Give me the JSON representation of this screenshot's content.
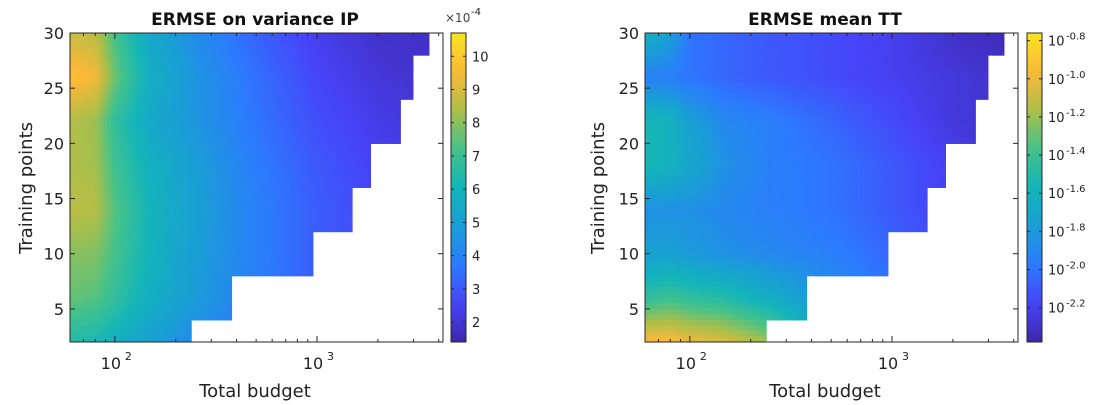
{
  "colormap": [
    "#3e26a8",
    "#4743f8",
    "#2c7bfe",
    "#199ed5",
    "#14b5b9",
    "#44c28a",
    "#acbf4a",
    "#fcb838",
    "#f8e520"
  ],
  "chart_data": [
    {
      "type": "heatmap",
      "title": "ERMSE on variance IP",
      "xlabel": "Total budget",
      "ylabel": "Training points",
      "xscale": "log",
      "xlim": [
        60,
        4200
      ],
      "ylim": [
        2,
        30
      ],
      "xticks": [
        {
          "label": "10",
          "exp": "2",
          "value": 100
        },
        {
          "label": "10",
          "exp": "3",
          "value": 1000
        }
      ],
      "yticks": [
        5,
        10,
        15,
        20,
        25,
        30
      ],
      "colorbar": {
        "min": 1.4,
        "max": 10.7,
        "multiplier_base": "×10",
        "multiplier_exp": "-4",
        "ticks": [
          {
            "label": "2",
            "value": 2
          },
          {
            "label": "3",
            "value": 3
          },
          {
            "label": "4",
            "value": 4
          },
          {
            "label": "5",
            "value": 5
          },
          {
            "label": "6",
            "value": 6
          },
          {
            "label": "7",
            "value": 7
          },
          {
            "label": "8",
            "value": 8
          },
          {
            "label": "9",
            "value": 9
          },
          {
            "label": "10",
            "value": 10
          }
        ]
      },
      "boundary": [
        {
          "y_from": 2,
          "y_to": 4,
          "x_max": 240
        },
        {
          "y_from": 4,
          "y_to": 8,
          "x_max": 380
        },
        {
          "y_from": 8,
          "y_to": 12,
          "x_max": 960
        },
        {
          "y_from": 12,
          "y_to": 16,
          "x_max": 1500
        },
        {
          "y_from": 16,
          "y_to": 20,
          "x_max": 1850
        },
        {
          "y_from": 20,
          "y_to": 24,
          "x_max": 2600
        },
        {
          "y_from": 24,
          "y_to": 28,
          "x_max": 3000
        },
        {
          "y_from": 28,
          "y_to": 30,
          "x_max": 3600
        }
      ],
      "x_nodes": [
        60,
        80,
        100,
        150,
        250,
        500,
        1000,
        2000,
        4200
      ],
      "y_nodes": [
        2,
        6,
        10,
        14,
        18,
        22,
        26,
        30
      ],
      "values": [
        [
          6.5,
          6.2,
          5.8,
          5.0,
          4.2,
          3.6,
          3.0,
          2.6,
          2.2
        ],
        [
          7.6,
          7.4,
          6.8,
          5.7,
          4.8,
          3.8,
          3.1,
          2.6,
          2.2
        ],
        [
          8.0,
          7.9,
          7.2,
          5.9,
          4.9,
          3.9,
          3.1,
          2.6,
          2.2
        ],
        [
          8.6,
          8.5,
          7.4,
          6.0,
          5.0,
          3.9,
          3.1,
          2.6,
          2.2
        ],
        [
          8.4,
          8.3,
          7.1,
          5.8,
          4.9,
          3.8,
          3.0,
          2.5,
          2.1
        ],
        [
          8.5,
          8.2,
          6.8,
          5.4,
          4.6,
          3.6,
          2.8,
          2.3,
          2.0
        ],
        [
          9.8,
          9.4,
          7.7,
          5.7,
          4.6,
          3.5,
          2.6,
          2.1,
          1.9
        ],
        [
          8.8,
          8.6,
          7.2,
          5.3,
          4.3,
          3.2,
          2.4,
          1.9,
          1.8
        ]
      ]
    },
    {
      "type": "heatmap",
      "title": "ERMSE mean TT",
      "xlabel": "Total budget",
      "ylabel": "Training points",
      "xscale": "log",
      "xlim": [
        60,
        4200
      ],
      "ylim": [
        2,
        30
      ],
      "xticks": [
        {
          "label": "10",
          "exp": "2",
          "value": 100
        },
        {
          "label": "10",
          "exp": "3",
          "value": 1000
        }
      ],
      "yticks": [
        5,
        10,
        15,
        20,
        25,
        30
      ],
      "colorbar": {
        "min": -2.38,
        "max": -0.76,
        "scale": "log10",
        "ticks": [
          {
            "label": "10",
            "exp": "-0.8",
            "value": -0.8
          },
          {
            "label": "10",
            "exp": "-1.0",
            "value": -1.0
          },
          {
            "label": "10",
            "exp": "-1.2",
            "value": -1.2
          },
          {
            "label": "10",
            "exp": "-1.4",
            "value": -1.4
          },
          {
            "label": "10",
            "exp": "-1.6",
            "value": -1.6
          },
          {
            "label": "10",
            "exp": "-1.8",
            "value": -1.8
          },
          {
            "label": "10",
            "exp": "-2.0",
            "value": -2.0
          },
          {
            "label": "10",
            "exp": "-2.2",
            "value": -2.2
          }
        ]
      },
      "boundary": [
        {
          "y_from": 2,
          "y_to": 4,
          "x_max": 240
        },
        {
          "y_from": 4,
          "y_to": 8,
          "x_max": 380
        },
        {
          "y_from": 8,
          "y_to": 12,
          "x_max": 960
        },
        {
          "y_from": 12,
          "y_to": 16,
          "x_max": 1500
        },
        {
          "y_from": 16,
          "y_to": 20,
          "x_max": 1850
        },
        {
          "y_from": 20,
          "y_to": 24,
          "x_max": 2600
        },
        {
          "y_from": 24,
          "y_to": 28,
          "x_max": 3000
        },
        {
          "y_from": 28,
          "y_to": 30,
          "x_max": 3600
        }
      ],
      "x_nodes": [
        60,
        80,
        100,
        150,
        250,
        500,
        1000,
        2000,
        4200
      ],
      "y_nodes": [
        2,
        6,
        10,
        14,
        18,
        22,
        26,
        30
      ],
      "values": [
        [
          -0.95,
          -0.95,
          -1.0,
          -1.05,
          -1.2,
          -1.75,
          -2.0,
          -2.15,
          -2.25
        ],
        [
          -1.45,
          -1.4,
          -1.45,
          -1.5,
          -1.65,
          -1.85,
          -2.0,
          -2.15,
          -2.25
        ],
        [
          -1.75,
          -1.75,
          -1.8,
          -1.85,
          -1.9,
          -1.95,
          -2.05,
          -2.15,
          -2.25
        ],
        [
          -1.85,
          -1.85,
          -1.85,
          -1.9,
          -1.95,
          -2.0,
          -2.1,
          -2.2,
          -2.3
        ],
        [
          -1.55,
          -1.6,
          -1.7,
          -1.85,
          -1.95,
          -2.0,
          -2.1,
          -2.2,
          -2.3
        ],
        [
          -1.55,
          -1.6,
          -1.75,
          -1.9,
          -1.95,
          -2.05,
          -2.15,
          -2.25,
          -2.3
        ],
        [
          -1.95,
          -1.95,
          -2.0,
          -2.05,
          -2.1,
          -2.15,
          -2.2,
          -2.25,
          -2.3
        ],
        [
          -1.6,
          -1.75,
          -2.0,
          -2.05,
          -2.1,
          -2.15,
          -2.2,
          -2.3,
          -2.35
        ]
      ]
    }
  ]
}
